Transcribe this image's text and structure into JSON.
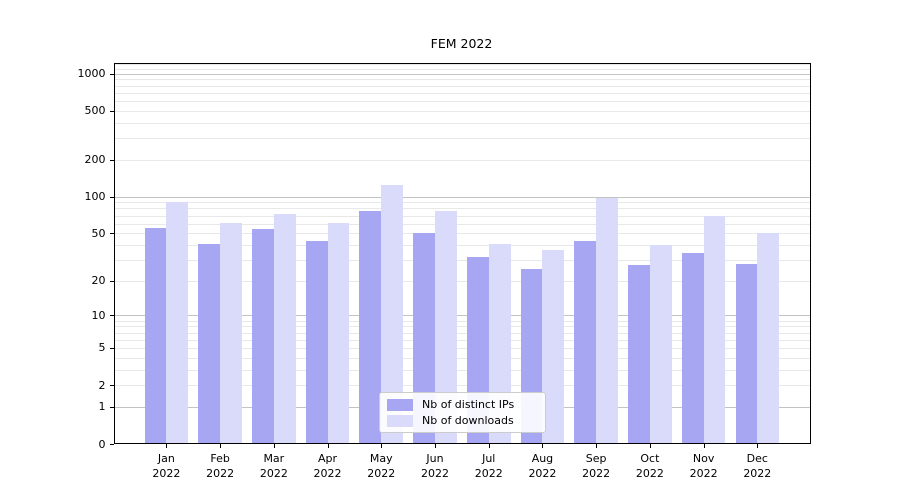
{
  "title": "FEM 2022",
  "chart_data": {
    "type": "bar",
    "title": "FEM 2022",
    "categories": [
      "Jan",
      "Feb",
      "Mar",
      "Apr",
      "May",
      "Jun",
      "Jul",
      "Aug",
      "Sep",
      "Oct",
      "Nov",
      "Dec"
    ],
    "category_year": "2022",
    "series": [
      {
        "name": "Nb of distinct IPs",
        "color": "#a6a6f3",
        "values": [
          55,
          41,
          54,
          43,
          77,
          50,
          32,
          25,
          43,
          27,
          34,
          28
        ]
      },
      {
        "name": "Nb of downloads",
        "color": "#dadafa",
        "values": [
          91,
          61,
          72,
          61,
          125,
          76,
          41,
          36,
          97,
          40,
          69,
          50
        ]
      }
    ],
    "y_scale": "log1p",
    "y_ticks": [
      0,
      1,
      2,
      5,
      10,
      20,
      50,
      100,
      200,
      500,
      1000
    ],
    "y_major_gridlines": [
      1,
      10,
      100,
      1000
    ],
    "ylim": [
      0,
      1220
    ],
    "xlabel": "",
    "ylabel": "",
    "grid": true,
    "legend_position": "lower center",
    "colors": {
      "grid_major": "#c3c3c3",
      "grid_minor": "#e8e8e8",
      "axis": "#000000",
      "text": "#000000",
      "legend_border": "#cccccc",
      "background": "#ffffff"
    }
  }
}
